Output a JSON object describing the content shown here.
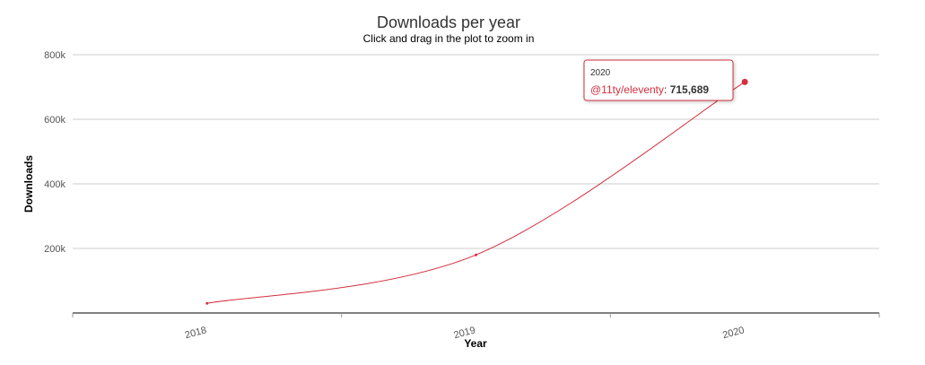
{
  "chart_data": {
    "type": "line",
    "title": "Downloads per year",
    "subtitle": "Click and drag in the plot to zoom in",
    "xlabel": "Year",
    "ylabel": "Downloads",
    "categories": [
      "2018",
      "2019",
      "2020"
    ],
    "series": [
      {
        "name": "@11ty/eleventy",
        "values": [
          30000,
          180000,
          715689
        ],
        "color": "#d32f3f"
      }
    ],
    "ylim": [
      0,
      800000
    ],
    "yticks": [
      200000,
      400000,
      600000,
      800000
    ],
    "ytick_labels": [
      "200k",
      "400k",
      "600k",
      "800k"
    ],
    "grid": true,
    "legend": "none",
    "tooltip": {
      "header": "2020",
      "series_label": "@11ty/eleventy",
      "value_text": "715,689",
      "border_color": "#d32f3f"
    }
  }
}
